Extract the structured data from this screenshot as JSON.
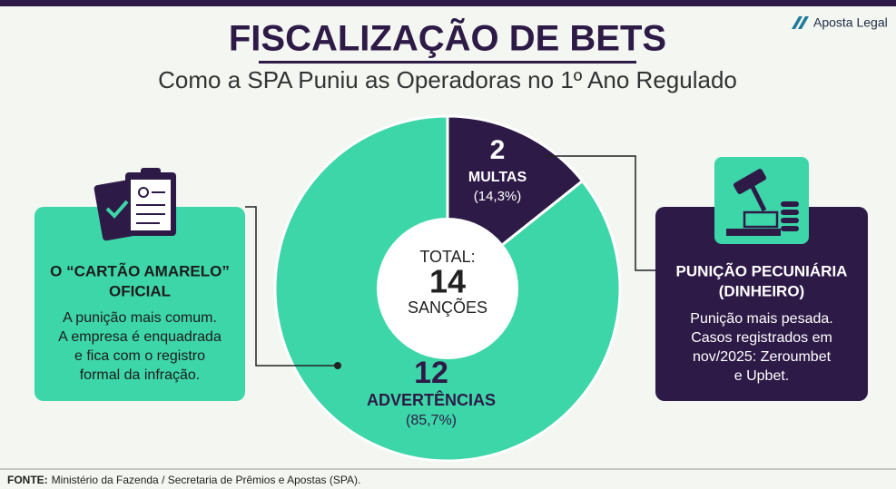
{
  "brand": "Aposta Legal",
  "chart_data": {
    "type": "pie",
    "donut": true,
    "title": "FISCALIZAÇÃO DE BETS",
    "subtitle": "Como a SPA Puniu as Operadoras no 1º Ano Regulado",
    "categories": [
      "MULTAS",
      "ADVERTÊNCIAS"
    ],
    "values": [
      2,
      12
    ],
    "percent_labels": [
      "(14,3%)",
      "(85,7%)"
    ],
    "colors": [
      "#2e1a47",
      "#3dd6a8"
    ],
    "total": {
      "label": "TOTAL:",
      "value": 14,
      "unit": "SANÇÕES"
    }
  },
  "left_card": {
    "title_lines": [
      "O “CARTÃO AMARELO”",
      "OFICIAL"
    ],
    "body_lines": [
      "A punição mais comum.",
      "A empresa é enquadrada",
      "e fica com o registro",
      "formal da infração."
    ]
  },
  "right_card": {
    "title_lines": [
      "PUNIÇÃO PECUNIÁRIA",
      "(DINHEIRO)"
    ],
    "body_lines": [
      "Punição mais pesada.",
      "Casos registrados em",
      "nov/2025: Zeroumbet",
      "e Upbet."
    ]
  },
  "source": {
    "label": "FONTE:",
    "text": "Ministério da Fazenda / Secretaria de Prêmios e Apostas (SPA)."
  }
}
